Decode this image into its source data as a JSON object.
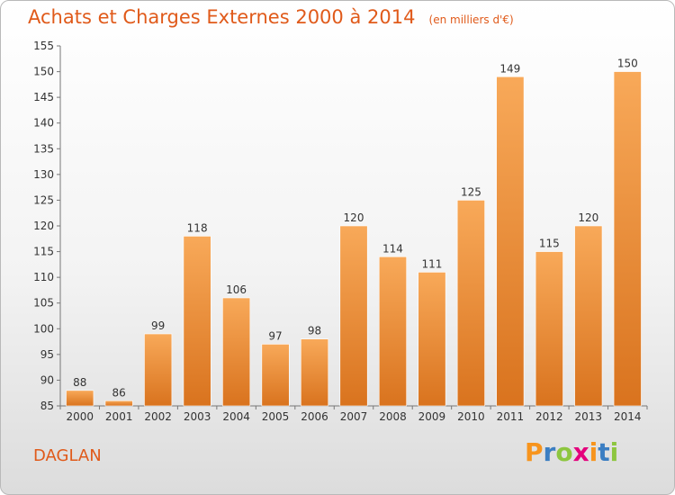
{
  "title": {
    "main": "Achats et Charges Externes 2000 à 2014",
    "unit": "(en milliers d'€)"
  },
  "commune": "DAGLAN",
  "brand": {
    "letters": [
      "P",
      "r",
      "o",
      "x",
      "i",
      "t",
      "i"
    ],
    "colors": [
      "#f7941d",
      "#3b7ec2",
      "#8dc63f",
      "#e4007c",
      "#f7941d",
      "#3b7ec2",
      "#8dc63f"
    ]
  },
  "colors": {
    "bar_top": "#f8a959",
    "bar_bottom": "#d9731e",
    "title": "#e05a1a"
  },
  "chart_data": {
    "type": "bar",
    "categories": [
      "2000",
      "2001",
      "2002",
      "2003",
      "2004",
      "2005",
      "2006",
      "2007",
      "2008",
      "2009",
      "2010",
      "2011",
      "2012",
      "2013",
      "2014"
    ],
    "values": [
      88,
      86,
      99,
      118,
      106,
      97,
      98,
      120,
      114,
      111,
      125,
      149,
      115,
      120,
      150
    ],
    "title": "Achats et Charges Externes 2000 à 2014",
    "xlabel": "",
    "ylabel": "",
    "ylim": [
      85,
      155
    ],
    "yticks": [
      85,
      90,
      95,
      100,
      105,
      110,
      115,
      120,
      125,
      130,
      135,
      140,
      145,
      150,
      155
    ],
    "grid": false,
    "legend": "none"
  }
}
